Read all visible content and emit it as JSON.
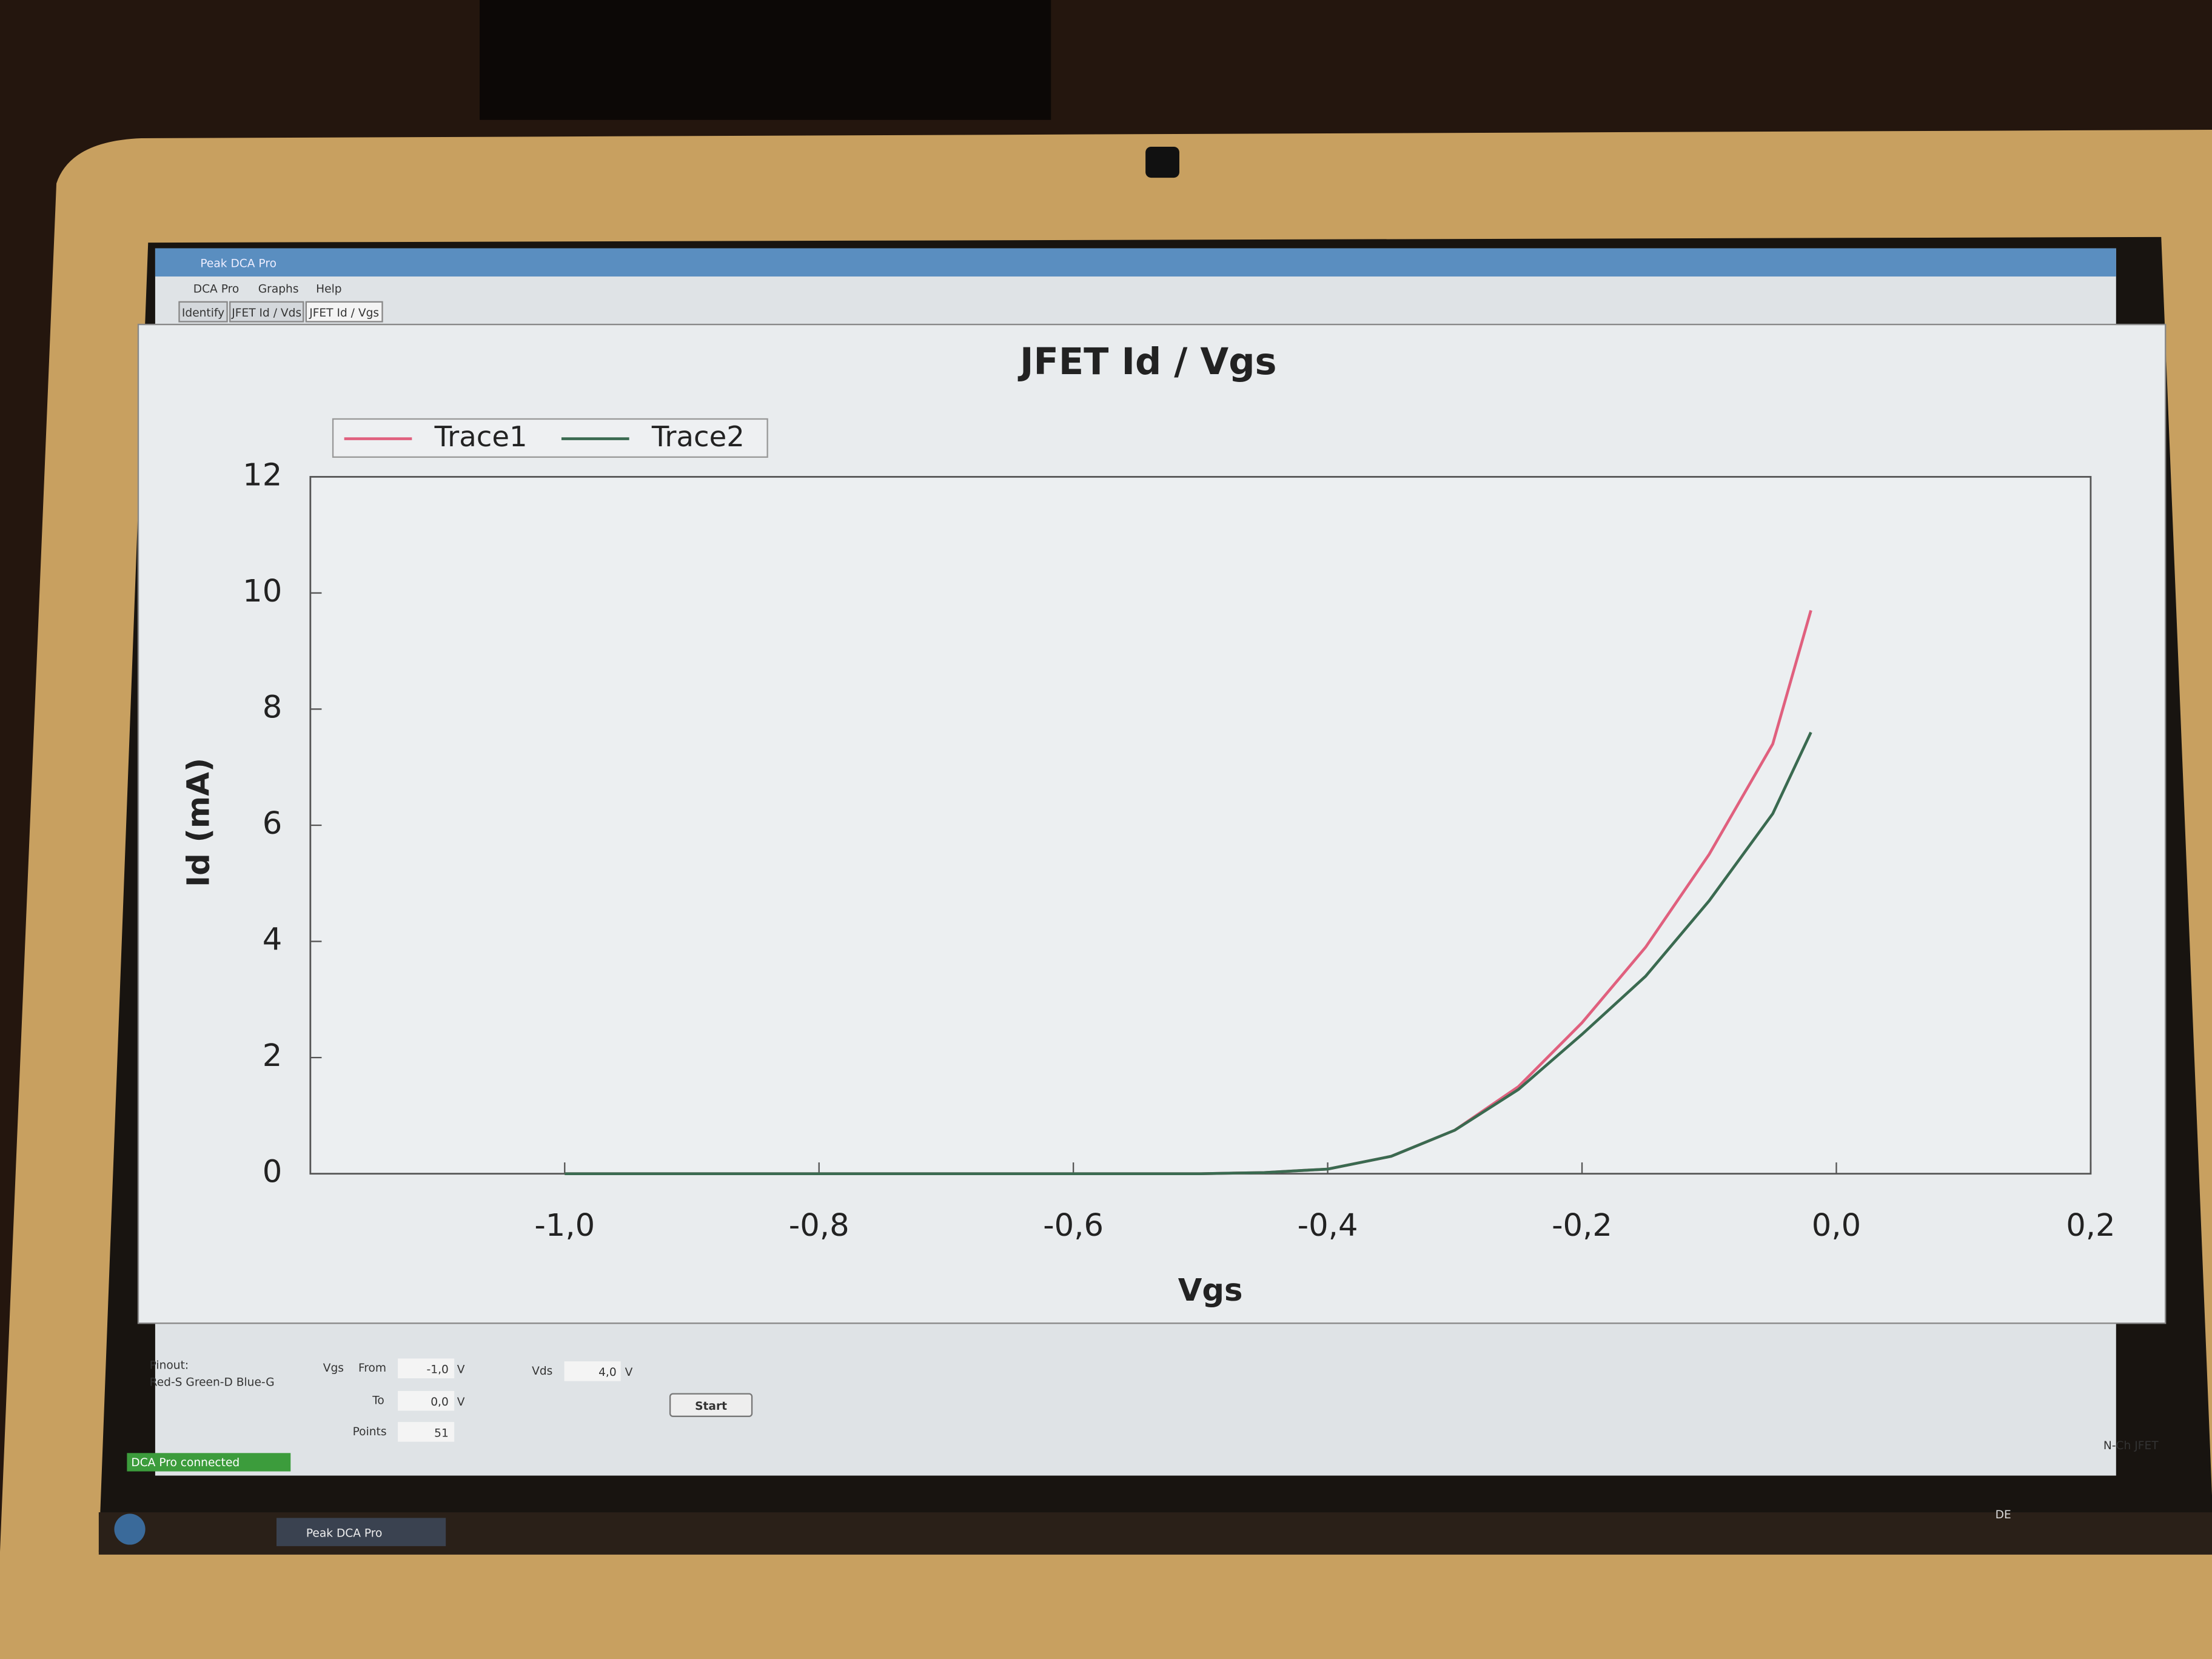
{
  "window": {
    "title": "Peak DCA Pro",
    "menu": [
      "DCA Pro",
      "Graphs",
      "Help"
    ],
    "tabs": [
      "Identify",
      "JFET Id / Vds",
      "JFET Id / Vgs"
    ]
  },
  "chart_data": {
    "type": "line",
    "title": "JFET Id / Vgs",
    "x_label": "Vgs",
    "y_label": "Id (mA)",
    "x": [
      -1.0,
      -0.9,
      -0.8,
      -0.7,
      -0.6,
      -0.5,
      -0.45,
      -0.4,
      -0.35,
      -0.3,
      -0.25,
      -0.2,
      -0.15,
      -0.1,
      -0.05,
      -0.02
    ],
    "series": [
      {
        "name": "Trace1",
        "color": "#e0607e",
        "values": [
          0,
          0,
          0,
          0,
          0,
          0,
          0.02,
          0.08,
          0.3,
          0.75,
          1.5,
          2.6,
          3.9,
          5.5,
          7.4,
          9.7
        ]
      },
      {
        "name": "Trace2",
        "color": "#3a6a50",
        "values": [
          0,
          0,
          0,
          0,
          0,
          0,
          0.02,
          0.08,
          0.3,
          0.75,
          1.45,
          2.4,
          3.4,
          4.7,
          6.2,
          7.6
        ]
      }
    ],
    "xlim": [
      -1.2,
      0.2
    ],
    "xticks": [
      {
        "value": -1.0,
        "label": "-1,0"
      },
      {
        "value": -0.8,
        "label": "-0,8"
      },
      {
        "value": -0.6,
        "label": "-0,6"
      },
      {
        "value": -0.4,
        "label": "-0,4"
      },
      {
        "value": -0.2,
        "label": "-0,2"
      },
      {
        "value": 0.0,
        "label": "0,0"
      },
      {
        "value": 0.2,
        "label": "0,2"
      }
    ],
    "ylim": [
      0,
      12
    ],
    "yticks": [
      0,
      2,
      4,
      6,
      8,
      10,
      12
    ],
    "legend": "upper left"
  },
  "controls": {
    "pinout_label": "Pinout:",
    "pinout": "Red-S Green-D Blue-G",
    "vgs_label": "Vgs",
    "from_label": "From",
    "from_value": "-1,0",
    "from_unit": "V",
    "to_label": "To",
    "to_value": "0,0",
    "to_unit": "V",
    "points_label": "Points",
    "points_value": "51",
    "vds_label": "Vds",
    "vds_value": "4,0",
    "vds_unit": "V",
    "start_button": "Start"
  },
  "status": {
    "connection": "DCA Pro connected",
    "device": "N-Ch JFET"
  },
  "taskbar": {
    "app": "Peak DCA Pro",
    "language": "DE"
  }
}
